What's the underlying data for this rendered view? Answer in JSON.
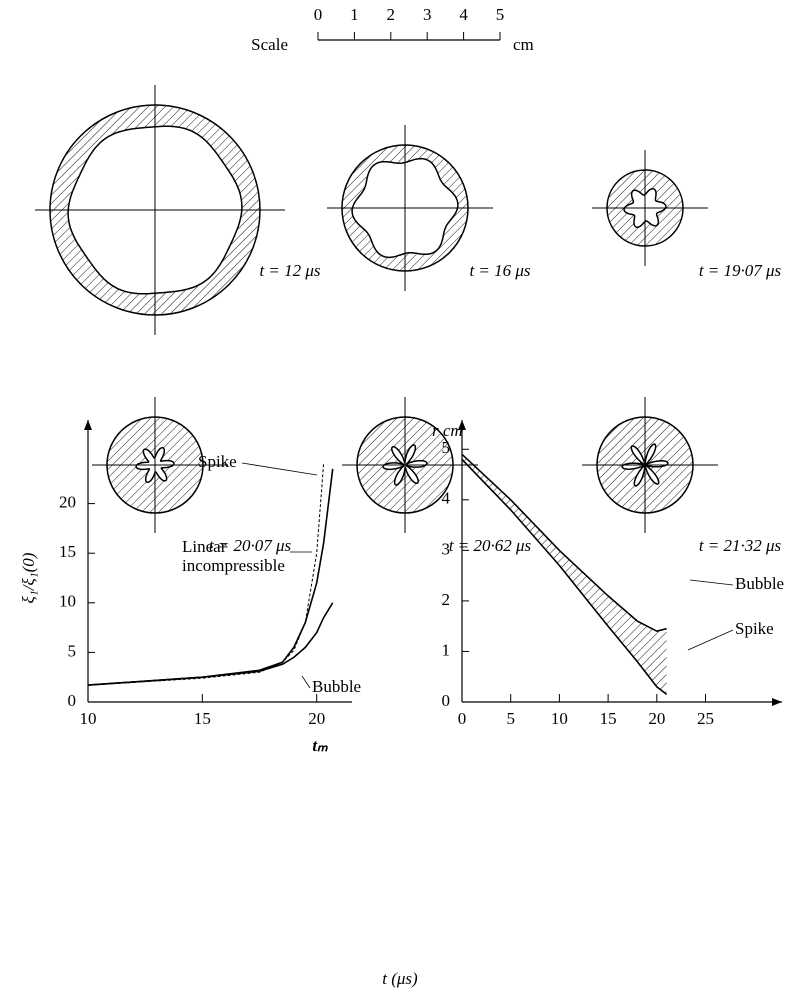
{
  "scale": {
    "label": "Scale",
    "unit": "cm",
    "ticks": [
      0,
      1,
      2,
      3,
      4,
      5
    ]
  },
  "snapshots": [
    "t = 12 μs",
    "t = 16 μs",
    "t = 19·07 μs",
    "t = 20·07 μs",
    "t = 20·62 μs",
    "t = 21·32 μs"
  ],
  "common_xlabel": "t (μs)",
  "chart_data": [
    {
      "type": "line",
      "ylabel": "ξ₁/ξ₁(0)",
      "xlabel": "tₘ",
      "xlim": [
        10,
        21.5
      ],
      "xticks": [
        10,
        15,
        20
      ],
      "ylim": [
        0,
        25
      ],
      "yticks": [
        0,
        5,
        10,
        15,
        20
      ],
      "x": [
        10,
        15,
        17.5,
        18.5,
        19,
        19.5,
        20,
        20.3,
        20.7
      ],
      "series": [
        {
          "name": "Spike",
          "color": "#000",
          "values": [
            1.7,
            2.5,
            3.2,
            4,
            5.5,
            8,
            12,
            16,
            23.5
          ]
        },
        {
          "name": "Bubble",
          "color": "#000",
          "values": [
            1.7,
            2.5,
            3.1,
            3.8,
            4.5,
            5.5,
            7,
            8.5,
            10
          ]
        },
        {
          "name": "Linear incompressible",
          "color": "#000",
          "dashed": true,
          "values": [
            1.7,
            2.4,
            3,
            4,
            5.2,
            8,
            15,
            24,
            null
          ]
        }
      ]
    },
    {
      "type": "line",
      "ylabel": "r cm",
      "xlim": [
        0,
        27
      ],
      "xticks": [
        0,
        5,
        10,
        15,
        20,
        25
      ],
      "ylim": [
        0,
        5.5
      ],
      "yticks": [
        0,
        1,
        2,
        3,
        4,
        5
      ],
      "shade_between": true,
      "x": [
        0,
        5,
        10,
        15,
        18,
        20,
        21
      ],
      "series": [
        {
          "name": "Bubble",
          "color": "#000",
          "values": [
            4.9,
            4.0,
            3.0,
            2.1,
            1.6,
            1.4,
            1.45
          ]
        },
        {
          "name": "Spike",
          "color": "#000",
          "values": [
            4.8,
            3.8,
            2.7,
            1.5,
            0.8,
            0.3,
            0.15
          ]
        }
      ]
    }
  ]
}
